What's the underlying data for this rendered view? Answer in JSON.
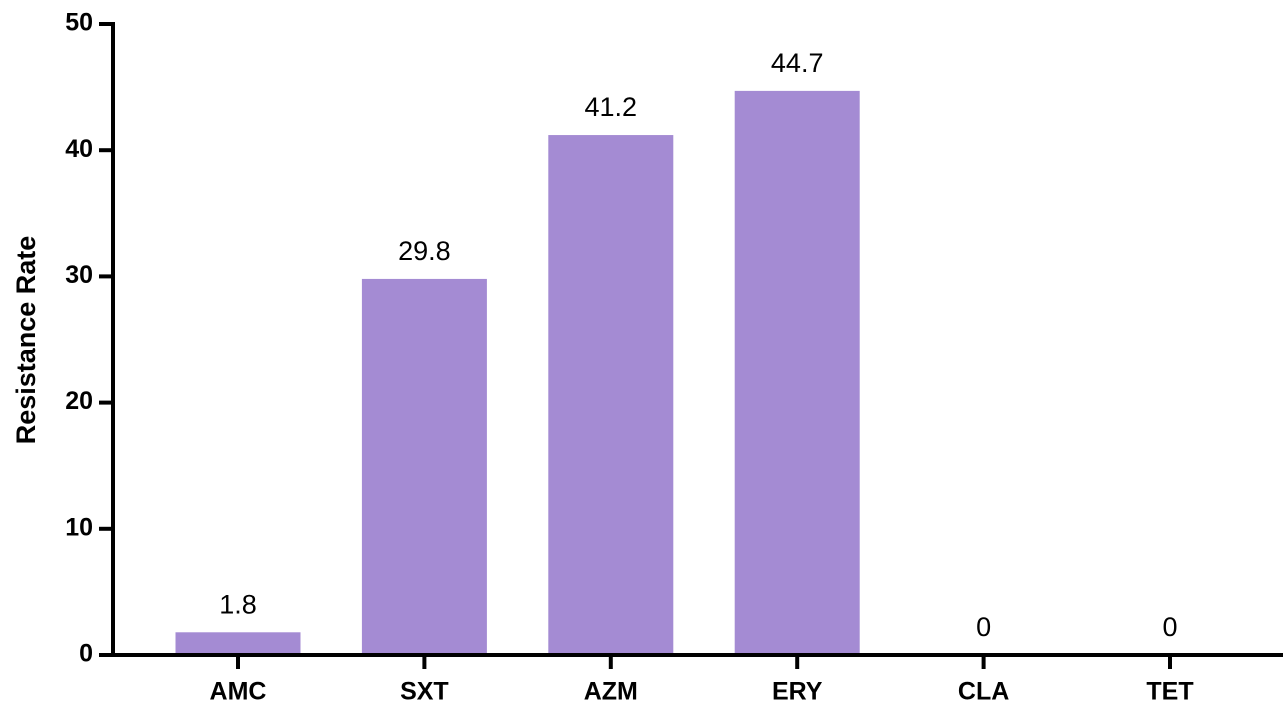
{
  "chart_data": {
    "type": "bar",
    "y_label": "Resistance Rate",
    "categories": [
      "AMC",
      "SXT",
      "AZM",
      "ERY",
      "CLA",
      "TET"
    ],
    "values": [
      1.8,
      29.8,
      41.2,
      44.7,
      0,
      0
    ],
    "color": "#a48bd3",
    "ylim": [
      0,
      50
    ],
    "yticks": [
      0,
      10,
      20,
      30,
      40,
      50
    ],
    "grid": false
  }
}
